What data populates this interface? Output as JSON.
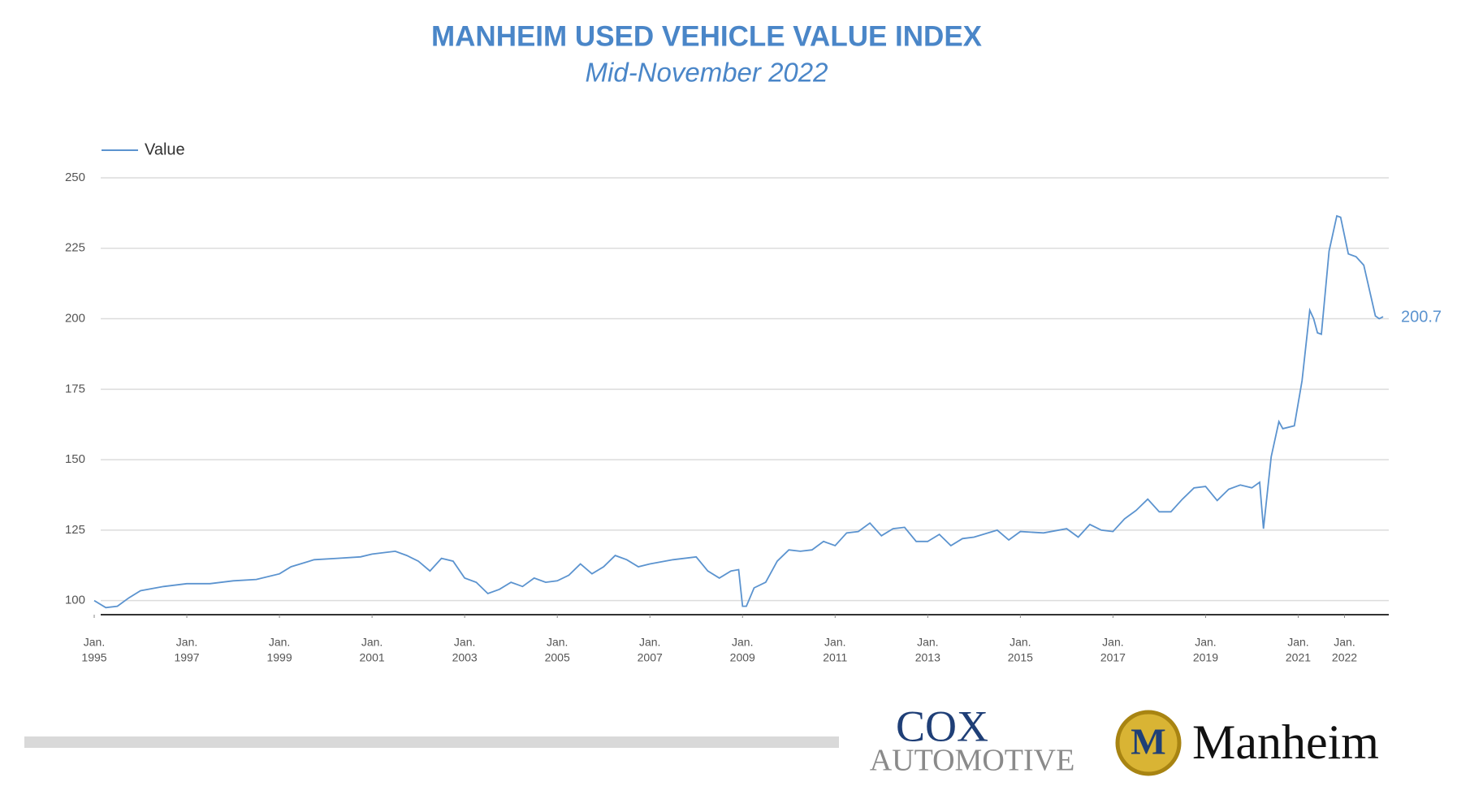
{
  "chart_data": {
    "type": "line",
    "title": "MANHEIM USED VEHICLE VALUE INDEX",
    "subtitle": "Mid-November 2022",
    "x": [
      "1995-01",
      "1995-04",
      "1995-07",
      "1995-10",
      "1996-01",
      "1996-07",
      "1997-01",
      "1997-07",
      "1998-01",
      "1998-07",
      "1999-01",
      "1999-04",
      "1999-10",
      "2000-04",
      "2000-10",
      "2001-01",
      "2001-07",
      "2001-10",
      "2002-01",
      "2002-04",
      "2002-07",
      "2002-10",
      "2003-01",
      "2003-04",
      "2003-07",
      "2003-10",
      "2004-01",
      "2004-04",
      "2004-07",
      "2004-10",
      "2005-01",
      "2005-04",
      "2005-07",
      "2005-10",
      "2006-01",
      "2006-04",
      "2006-07",
      "2006-10",
      "2007-01",
      "2007-07",
      "2008-01",
      "2008-04",
      "2008-07",
      "2008-10",
      "2008-12",
      "2009-01",
      "2009-02",
      "2009-04",
      "2009-07",
      "2009-10",
      "2010-01",
      "2010-04",
      "2010-07",
      "2010-10",
      "2011-01",
      "2011-04",
      "2011-07",
      "2011-10",
      "2012-01",
      "2012-04",
      "2012-07",
      "2012-10",
      "2013-01",
      "2013-04",
      "2013-07",
      "2013-10",
      "2014-01",
      "2014-07",
      "2014-10",
      "2015-01",
      "2015-07",
      "2016-01",
      "2016-04",
      "2016-07",
      "2016-10",
      "2017-01",
      "2017-04",
      "2017-07",
      "2017-10",
      "2018-01",
      "2018-04",
      "2018-07",
      "2018-10",
      "2019-01",
      "2019-04",
      "2019-07",
      "2019-10",
      "2020-01",
      "2020-03",
      "2020-04",
      "2020-06",
      "2020-08",
      "2020-09",
      "2020-12",
      "2021-02",
      "2021-04",
      "2021-05",
      "2021-06",
      "2021-07",
      "2021-09",
      "2021-11",
      "2021-12",
      "2022-02",
      "2022-04",
      "2022-06",
      "2022-09",
      "2022-10",
      "2022-11"
    ],
    "series": [
      {
        "name": "Value",
        "color": "#5b93cf",
        "values": [
          100,
          97.5,
          98,
          101,
          103.5,
          105,
          106,
          106,
          107,
          107.5,
          109.5,
          112,
          114.5,
          115,
          115.5,
          116.5,
          117.5,
          116,
          114,
          110.5,
          115,
          114,
          108,
          106.5,
          102.5,
          104,
          106.5,
          105,
          108,
          106.5,
          107,
          109,
          113,
          109.5,
          112,
          116,
          114.5,
          112,
          113,
          114.5,
          115.5,
          110.5,
          108,
          110.5,
          111,
          98,
          98,
          104.5,
          106.5,
          114,
          118,
          117.5,
          118,
          121,
          119.5,
          124,
          124.5,
          127.5,
          123,
          125.5,
          126,
          121,
          121,
          123.5,
          119.5,
          122,
          122.5,
          125,
          121.5,
          124.5,
          124,
          125.5,
          122.5,
          127,
          125,
          124.5,
          129,
          132,
          136,
          131.5,
          131.5,
          136,
          140,
          140.5,
          135.5,
          139.5,
          141,
          140,
          142,
          125.5,
          151,
          163.5,
          161,
          162,
          178,
          203,
          200,
          195,
          194.5,
          224,
          236.5,
          236,
          223,
          222,
          219,
          201,
          200,
          200.7
        ]
      }
    ],
    "xlim": [
      "1995-01",
      "2022-11"
    ],
    "xticks": [
      {
        "value": "1995-01",
        "label": [
          "Jan.",
          "1995"
        ]
      },
      {
        "value": "1997-01",
        "label": [
          "Jan.",
          "1997"
        ]
      },
      {
        "value": "1999-01",
        "label": [
          "Jan.",
          "1999"
        ]
      },
      {
        "value": "2001-01",
        "label": [
          "Jan.",
          "2001"
        ]
      },
      {
        "value": "2003-01",
        "label": [
          "Jan.",
          "2003"
        ]
      },
      {
        "value": "2005-01",
        "label": [
          "Jan.",
          "2005"
        ]
      },
      {
        "value": "2007-01",
        "label": [
          "Jan.",
          "2007"
        ]
      },
      {
        "value": "2009-01",
        "label": [
          "Jan.",
          "2009"
        ]
      },
      {
        "value": "2011-01",
        "label": [
          "Jan.",
          "2011"
        ]
      },
      {
        "value": "2013-01",
        "label": [
          "Jan.",
          "2013"
        ]
      },
      {
        "value": "2015-01",
        "label": [
          "Jan.",
          "2015"
        ]
      },
      {
        "value": "2017-01",
        "label": [
          "Jan.",
          "2017"
        ]
      },
      {
        "value": "2019-01",
        "label": [
          "Jan.",
          "2019"
        ]
      },
      {
        "value": "2021-01",
        "label": [
          "Jan.",
          "2021"
        ]
      },
      {
        "value": "2022-01",
        "label": [
          "Jan.",
          "2022"
        ]
      }
    ],
    "ylim": [
      95,
      250
    ],
    "yticks": [
      100,
      125,
      150,
      175,
      200,
      225,
      250
    ],
    "grid": true,
    "legend": "top-left"
  },
  "logos": {
    "cox": [
      "COX",
      "AUTOMOTIVE"
    ],
    "manheim": "Manheim"
  }
}
